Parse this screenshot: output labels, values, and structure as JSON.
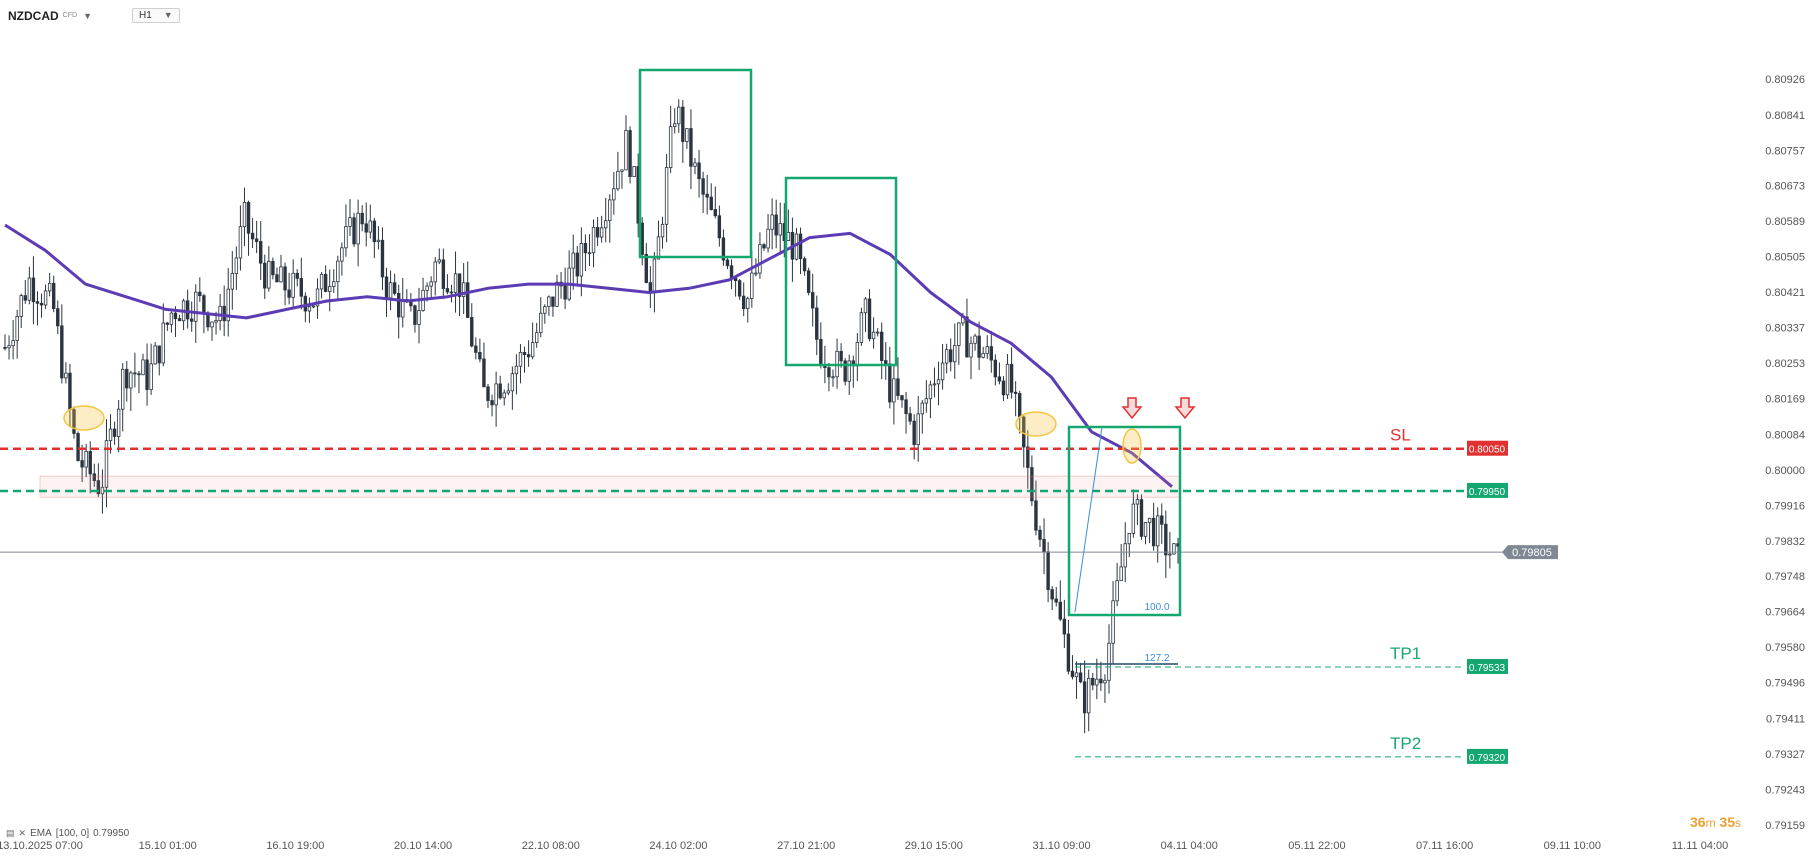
{
  "header": {
    "symbol": "NZDCAD",
    "instrument_type": "CFD",
    "timeframe": "H1",
    "dropdown_icon": "chevron-down-icon"
  },
  "indicator": {
    "label": "EMA",
    "params": "[100, 0]",
    "value": "0.79950",
    "icons": [
      "hide-icon",
      "close-icon"
    ]
  },
  "timer": {
    "minutes": "36",
    "m_unit": "m",
    "seconds": "35",
    "s_unit": "s"
  },
  "colors": {
    "candle": "#2a3540",
    "ema": "#5b3cb4",
    "sl": "#e03030",
    "entry": "#14a870",
    "tp": "#14a870",
    "box": "#14a870",
    "fib": "#3a8fd8",
    "highlight": "#f5c542",
    "arrow": "#e03030",
    "current_price": "#7f8893",
    "timer": "#f0a030"
  },
  "chart_data": {
    "type": "candlestick",
    "symbol": "NZDCAD",
    "timeframe": "H1",
    "y_ticks": [
      "0.80926",
      "0.80841",
      "0.80757",
      "0.80673",
      "0.80589",
      "0.80505",
      "0.80421",
      "0.80337",
      "0.80253",
      "0.80169",
      "0.80084",
      "0.80000",
      "0.79916",
      "0.79832",
      "0.79748",
      "0.79664",
      "0.79580",
      "0.79496",
      "0.79411",
      "0.79327",
      "0.79243",
      "0.79159"
    ],
    "ylim": [
      0.79135,
      0.80985
    ],
    "x_ticks": [
      "13.10.2025 07:00",
      "15.10 01:00",
      "16.10 19:00",
      "20.10 14:00",
      "22.10 08:00",
      "24.10 02:00",
      "27.10 21:00",
      "29.10 15:00",
      "31.10 09:00",
      "04.11 04:00",
      "05.11 22:00",
      "07.11 16:00",
      "09.11 10:00",
      "11.11 04:00"
    ],
    "price_path": [
      0.8029,
      0.8045,
      0.8039,
      0.8003,
      0.7996,
      0.8024,
      0.8022,
      0.8038,
      0.804,
      0.8035,
      0.8059,
      0.8045,
      0.8043,
      0.804,
      0.8052,
      0.8061,
      0.8043,
      0.8035,
      0.8049,
      0.8044,
      0.8018,
      0.8022,
      0.803,
      0.8042,
      0.8049,
      0.8062,
      0.8078,
      0.804,
      0.8086,
      0.8067,
      0.8053,
      0.804,
      0.8058,
      0.8053,
      0.8029,
      0.8023,
      0.8037,
      0.8019,
      0.8009,
      0.8025,
      0.8032,
      0.8027,
      0.802,
      0.7991,
      0.7965,
      0.7945,
      0.7955,
      0.799,
      0.7986,
      0.7978
    ],
    "ema": {
      "name": "EMA [100, 0]",
      "period": 100,
      "path": [
        0.8058,
        0.8052,
        0.8044,
        0.8041,
        0.8038,
        0.8037,
        0.8036,
        0.8038,
        0.804,
        0.8041,
        0.804,
        0.8041,
        0.8043,
        0.8044,
        0.8044,
        0.8043,
        0.8042,
        0.8043,
        0.8045,
        0.805,
        0.8055,
        0.8056,
        0.8051,
        0.8042,
        0.8035,
        0.803,
        0.8022,
        0.8009,
        0.8004,
        0.7996
      ]
    },
    "levels": [
      {
        "label": "SL",
        "value": "0.80050",
        "price": 0.8005,
        "style": "dashed",
        "color": "#e03030"
      },
      {
        "label": "",
        "value": "0.79950",
        "price": 0.7995,
        "style": "dashed",
        "color": "#14a870"
      },
      {
        "label": "TP1",
        "value": "0.79533",
        "price": 0.79533,
        "style": "dashed-thin",
        "color": "#14a870"
      },
      {
        "label": "TP2",
        "value": "0.79320",
        "price": 0.7932,
        "style": "dashed-thin",
        "color": "#14a870"
      }
    ],
    "current_price": "0.79805",
    "fib_labels": [
      "100.0",
      "127.2"
    ],
    "annotations": {
      "boxes": 4,
      "highlights": 3,
      "arrows": 2
    }
  }
}
